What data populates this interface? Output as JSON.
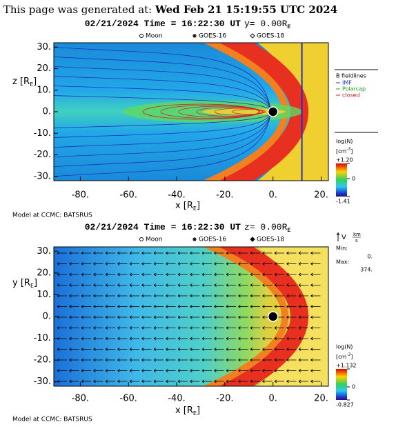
{
  "header": {
    "prefix": "This page was generated at:",
    "timestamp": "Wed Feb 21 15:19:55 UTC 2024"
  },
  "chart_data": [
    {
      "type": "heatmap",
      "title": "02/21/2024 Time = 16:22:30 UT",
      "slice": "y= 0.00R",
      "slice_sub": "E",
      "markers": [
        "Moon",
        "GOES-16",
        "GOES-18"
      ],
      "xlabel": "x [R",
      "xlabel_sub": "E",
      "xlabel_end": "]",
      "ylabel": "z [R",
      "ylabel_sub": "E",
      "ylabel_end": "]",
      "xlim": [
        -91,
        23
      ],
      "xticks": [
        {
          "value": -80,
          "label": "-80."
        },
        {
          "value": -60,
          "label": "-60."
        },
        {
          "value": -40,
          "label": "-40."
        },
        {
          "value": -20,
          "label": "-20."
        },
        {
          "value": 0,
          "label": "0."
        },
        {
          "value": 20,
          "label": "20."
        }
      ],
      "ylim": [
        -32,
        32
      ],
      "yticks": [
        {
          "value": 30,
          "label": "30."
        },
        {
          "value": 20,
          "label": "20."
        },
        {
          "value": 10,
          "label": "10."
        },
        {
          "value": 0,
          "label": "0."
        },
        {
          "value": -10,
          "label": "-10."
        },
        {
          "value": -20,
          "label": "-20."
        },
        {
          "value": -30,
          "label": "-30."
        }
      ],
      "fieldlines": {
        "title": "B fieldlines",
        "series": [
          {
            "name": "IMF",
            "color": "#2030c0"
          },
          {
            "name": "Polarcap",
            "color": "#20a020"
          },
          {
            "name": "closed",
            "color": "#d02020"
          }
        ]
      },
      "colorbar": {
        "label": "log(N)",
        "unit": "[cm",
        "unit_sup": "-3",
        "unit_end": "]",
        "lim": [
          -1.41,
          1.2
        ],
        "ticks": [
          {
            "value": 1.2,
            "label": "+1.20"
          },
          0,
          -1.41
        ]
      },
      "footer": "Model at CCMC: BATSRUS"
    },
    {
      "type": "heatmap",
      "title": "02/21/2024 Time = 16:22:30 UT",
      "slice": "z= 0.00R",
      "slice_sub": "E",
      "markers": [
        "Moon",
        "GOES-16",
        "GOES-18"
      ],
      "xlabel": "x [R",
      "xlabel_sub": "E",
      "xlabel_end": "]",
      "ylabel": "y [R",
      "ylabel_sub": "E",
      "ylabel_end": "]",
      "xlim": [
        -91,
        23
      ],
      "xticks": [
        {
          "value": -80,
          "label": "-80."
        },
        {
          "value": -60,
          "label": "-60."
        },
        {
          "value": -40,
          "label": "-40."
        },
        {
          "value": -20,
          "label": "-20."
        },
        {
          "value": 0,
          "label": "0."
        },
        {
          "value": 20,
          "label": "20."
        }
      ],
      "ylim": [
        -32,
        32
      ],
      "yticks": [
        {
          "value": 30,
          "label": "30."
        },
        {
          "value": 20,
          "label": "20."
        },
        {
          "value": 10,
          "label": "10."
        },
        {
          "value": 0,
          "label": "0."
        },
        {
          "value": -10,
          "label": "-10."
        },
        {
          "value": -20,
          "label": "-20."
        },
        {
          "value": -30,
          "label": "-30."
        }
      ],
      "vector_legend": {
        "label": "V",
        "unit_num": "km",
        "unit_den": "s",
        "captions": [
          "Min:",
          "Max:"
        ],
        "values": [
          0,
          374
        ],
        "value_labels": [
          "0.",
          "374."
        ]
      },
      "colorbar": {
        "label": "log(N)",
        "unit": "[cm",
        "unit_sup": "-3",
        "unit_end": "]",
        "lim": [
          -0.827,
          1.132
        ],
        "ticks": [
          {
            "value": 1.132,
            "label": "+1.132"
          },
          0,
          -0.827
        ]
      },
      "footer": "Model at CCMC: BATSRUS"
    }
  ]
}
